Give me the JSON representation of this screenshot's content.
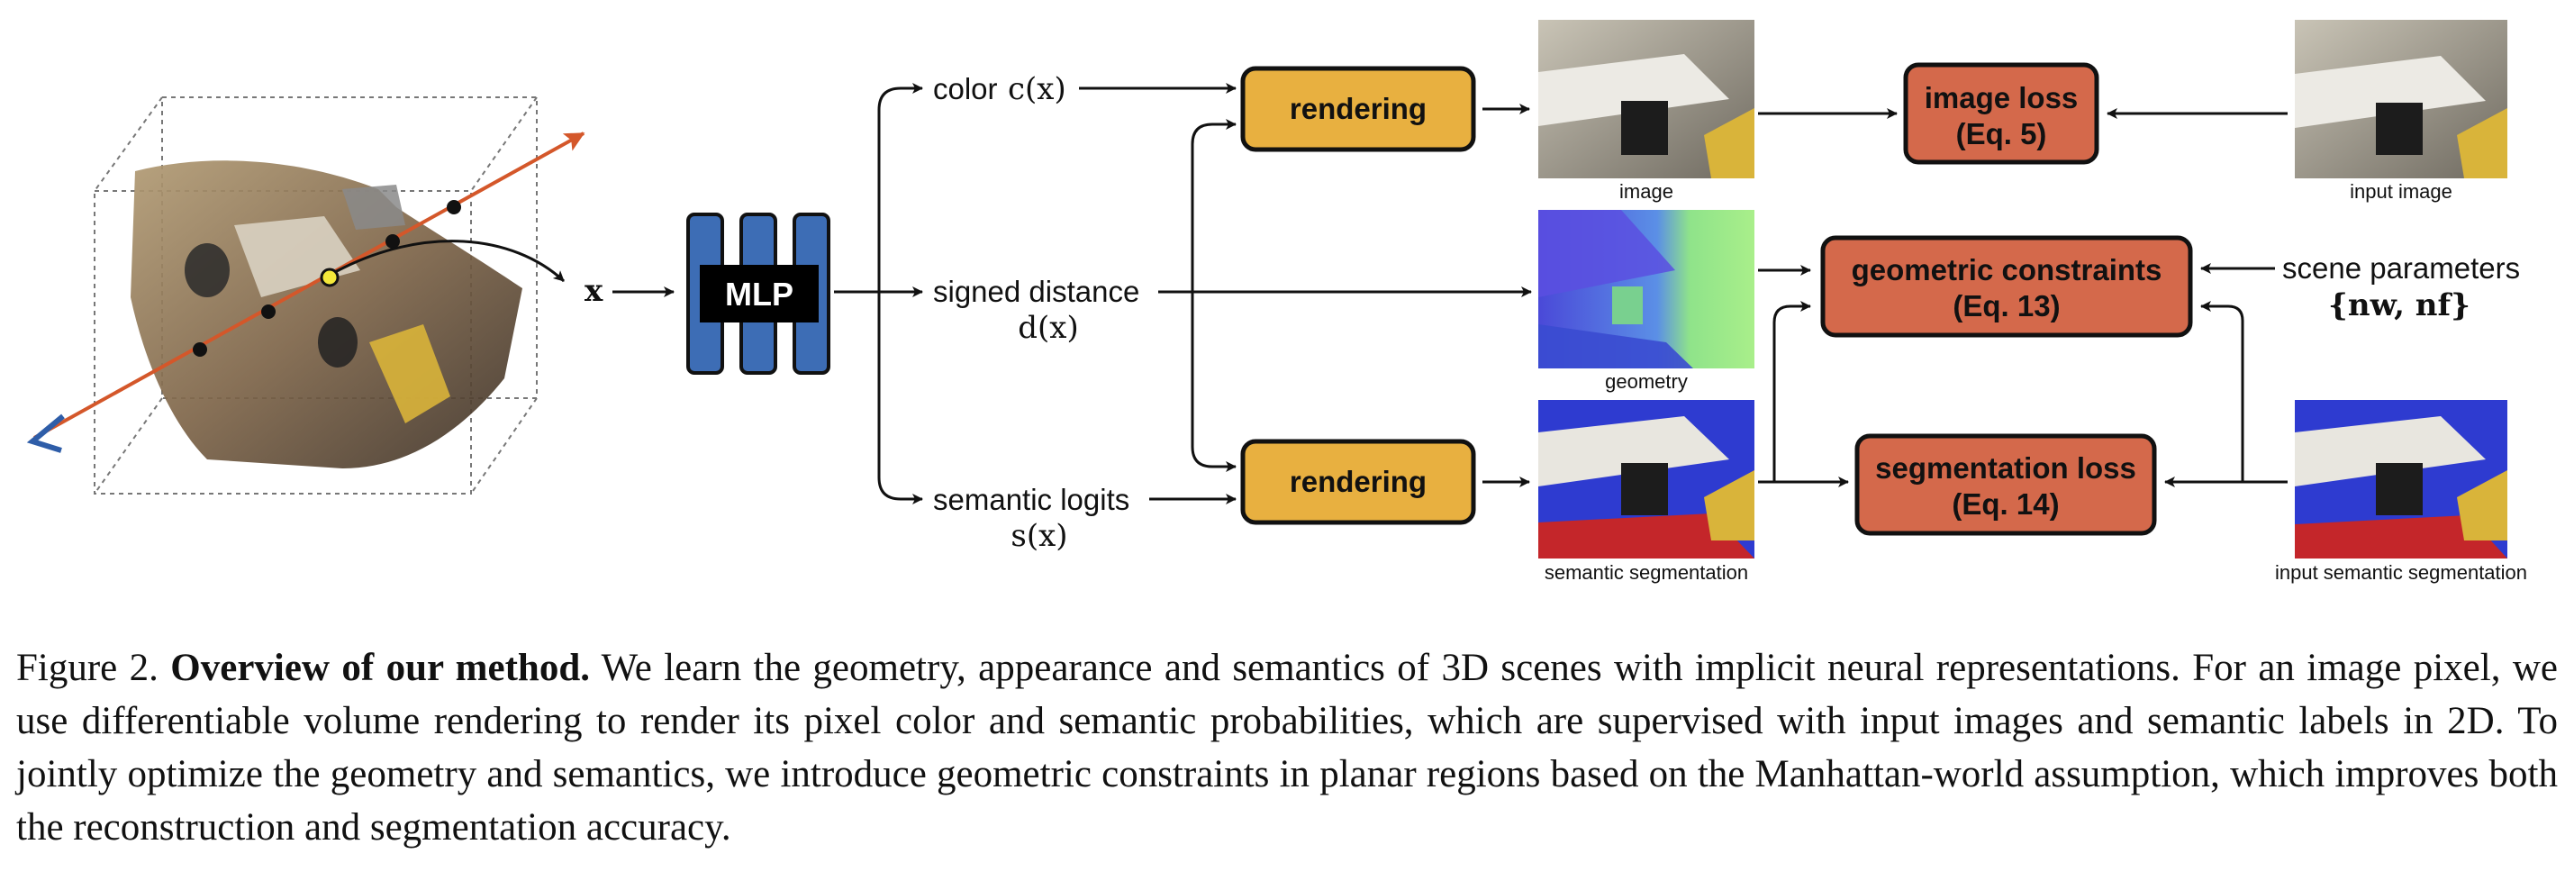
{
  "diagram": {
    "input_var": "x",
    "mlp_label": "MLP",
    "outputs": {
      "color": {
        "text": "color",
        "math": "c(x)"
      },
      "sdf": {
        "text": "signed distance",
        "math": "d(x)"
      },
      "semantic": {
        "text": "semantic logits",
        "math": "s(x)"
      }
    },
    "render_top": "rendering",
    "render_bottom": "rendering",
    "images": {
      "rendered_image": "image",
      "geometry": "geometry",
      "semantic_seg": "semantic segmentation",
      "input_image": "input image",
      "input_semantic": "input semantic segmentation"
    },
    "losses": {
      "image": {
        "line1": "image loss",
        "line2": "(Eq. 5)"
      },
      "geometric": {
        "line1": "geometric constraints",
        "line2": "(Eq. 13)"
      },
      "segmentation": {
        "line1": "segmentation loss",
        "line2": "(Eq. 14)"
      }
    },
    "scene_params": {
      "text": "scene parameters",
      "math": "{nw, nf}"
    },
    "colors": {
      "render_box": "#E8B040",
      "loss_box": "#D4694B",
      "mlp_bar": "#3D6DB5",
      "ray": "#D4572A",
      "camera": "#2E5DA8"
    }
  },
  "caption": {
    "figure_label": "Figure 2.",
    "title": "Overview of our method.",
    "body": "We learn the geometry, appearance and semantics of 3D scenes with implicit neural representations. For an image pixel, we use differentiable volume rendering to render its pixel color and semantic probabilities, which are supervised with input images and semantic labels in 2D. To jointly optimize the geometry and semantics, we introduce geometric constraints in planar regions based on the Manhattan-world assumption, which improves both the reconstruction and segmentation accuracy."
  }
}
